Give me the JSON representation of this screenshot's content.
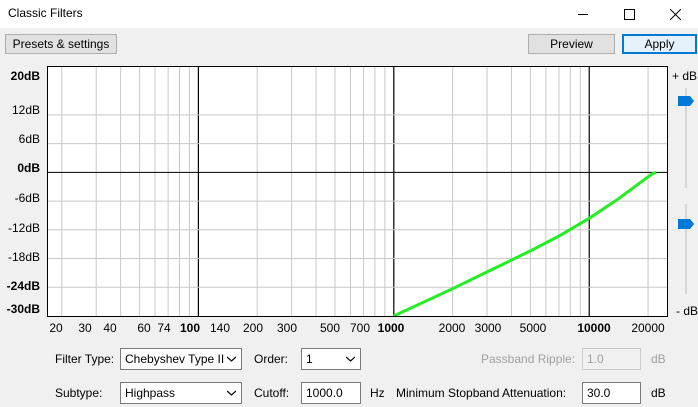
{
  "window": {
    "title": "Classic Filters"
  },
  "toolbar": {
    "presets_label": "Presets & settings",
    "preview_label": "Preview",
    "apply_label": "Apply"
  },
  "graph": {
    "y_ticks": [
      "20dB",
      "12dB",
      "6dB",
      "0dB",
      "-6dB",
      "-12dB",
      "-18dB",
      "-24dB",
      "-30dB"
    ],
    "x_ticks": [
      "20",
      "30",
      "40",
      "60",
      "74",
      "100",
      "140",
      "200",
      "300",
      "500",
      "700",
      "1000",
      "2000",
      "3000",
      "5000",
      "10000",
      "20000"
    ],
    "right_top": "+ dB",
    "right_bottom": "- dB"
  },
  "controls": {
    "filter_type_label": "Filter Type:",
    "filter_type_value": "Chebyshev Type II",
    "order_label": "Order:",
    "order_value": "1",
    "passband_label": "Passband Ripple:",
    "passband_value": "1.0",
    "passband_unit": "dB",
    "subtype_label": "Subtype:",
    "subtype_value": "Highpass",
    "cutoff_label": "Cutoff:",
    "cutoff_value": "1000.0",
    "cutoff_unit": "Hz",
    "stopband_label": "Minimum Stopband Attenuation:",
    "stopband_value": "30.0",
    "stopband_unit": "dB"
  },
  "chart_data": {
    "type": "line",
    "xscale": "log",
    "xlim": [
      17,
      25000
    ],
    "ylim": [
      -30,
      22
    ],
    "series": [
      {
        "x": [
          1000,
          2000,
          3000,
          5000,
          7000,
          10000,
          14000,
          18000,
          21000,
          22000
        ],
        "y": [
          -30,
          -24.3,
          -20.8,
          -16.4,
          -13.3,
          -9.6,
          -5.6,
          -2.3,
          -0.3,
          0
        ],
        "color": "#22ee22"
      }
    ],
    "grid": true
  }
}
